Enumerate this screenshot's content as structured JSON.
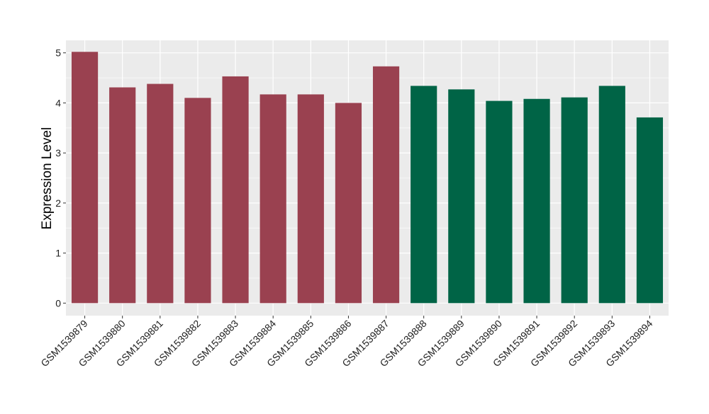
{
  "chart_data": {
    "type": "bar",
    "title": "",
    "xlabel": "",
    "ylabel": "Expression Level",
    "ylim": [
      -0.25,
      5.25
    ],
    "yticks": [
      0,
      1,
      2,
      3,
      4,
      5
    ],
    "grid": true,
    "legend": "none",
    "categories": [
      "GSM1539879",
      "GSM1539880",
      "GSM1539881",
      "GSM1539882",
      "GSM1539883",
      "GSM1539884",
      "GSM1539885",
      "GSM1539886",
      "GSM1539887",
      "GSM1539888",
      "GSM1539889",
      "GSM1539890",
      "GSM1539891",
      "GSM1539892",
      "GSM1539893",
      "GSM1539894"
    ],
    "values": [
      5.02,
      4.31,
      4.38,
      4.1,
      4.53,
      4.17,
      4.17,
      4.0,
      4.73,
      4.34,
      4.27,
      4.04,
      4.08,
      4.11,
      4.34,
      3.71
    ],
    "groups": [
      0,
      0,
      0,
      0,
      0,
      0,
      0,
      0,
      0,
      1,
      1,
      1,
      1,
      1,
      1,
      1
    ],
    "colors": [
      "#9a4150",
      "#006446"
    ],
    "background": "#ebebeb"
  }
}
